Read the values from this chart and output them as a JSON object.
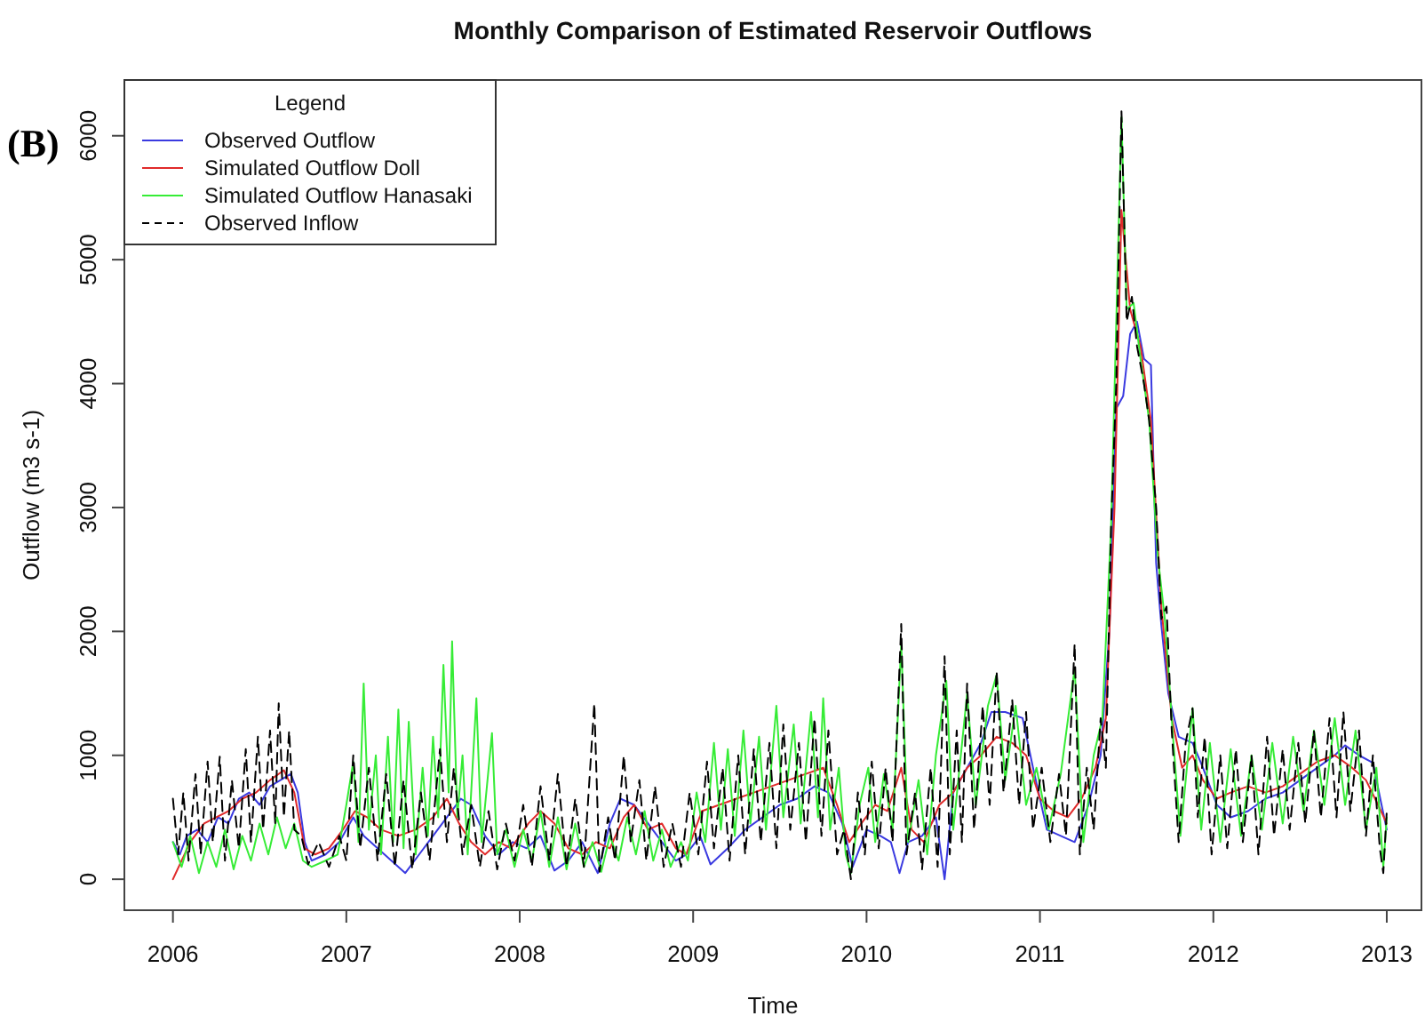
{
  "chart_data": {
    "type": "line",
    "title": "Monthly Comparison of Estimated Reservoir Outflows",
    "xlabel": "Time",
    "ylabel": "Outflow (m3 s-1)",
    "legend_title": "Legend",
    "legend": "top left",
    "annotations": [
      "(B)"
    ],
    "xlim": [
      2005.72,
      2013.2
    ],
    "ylim": [
      -250,
      6450
    ],
    "xticks": [
      2006,
      2007,
      2008,
      2009,
      2010,
      2011,
      2012,
      2013
    ],
    "yticks": [
      0,
      1000,
      2000,
      3000,
      4000,
      5000,
      6000
    ],
    "series": [
      {
        "name": "Observed Outflow",
        "color": "#3a3ae0",
        "x": [
          2006.0,
          2006.04,
          2006.08,
          2006.14,
          2006.2,
          2006.26,
          2006.32,
          2006.38,
          2006.44,
          2006.5,
          2006.56,
          2006.62,
          2006.68,
          2006.72,
          2006.76,
          2006.8,
          2006.88,
          2006.96,
          2007.04,
          2007.1,
          2007.18,
          2007.26,
          2007.34,
          2007.42,
          2007.5,
          2007.58,
          2007.66,
          2007.72,
          2007.8,
          2007.88,
          2007.96,
          2008.04,
          2008.12,
          2008.2,
          2008.28,
          2008.36,
          2008.45,
          2008.52,
          2008.58,
          2008.66,
          2008.74,
          2008.82,
          2008.9,
          2008.96,
          2009.04,
          2009.1,
          2009.2,
          2009.3,
          2009.4,
          2009.5,
          2009.6,
          2009.7,
          2009.78,
          2009.86,
          2009.92,
          2010.0,
          2010.08,
          2010.14,
          2010.19,
          2010.24,
          2010.32,
          2010.4,
          2010.45,
          2010.5,
          2010.58,
          2010.66,
          2010.72,
          2010.8,
          2010.9,
          2010.96,
          2011.04,
          2011.12,
          2011.2,
          2011.28,
          2011.35,
          2011.4,
          2011.44,
          2011.48,
          2011.52,
          2011.56,
          2011.6,
          2011.64,
          2011.67,
          2011.7,
          2011.74,
          2011.8,
          2011.88,
          2011.94,
          2012.02,
          2012.1,
          2012.2,
          2012.3,
          2012.4,
          2012.5,
          2012.6,
          2012.7,
          2012.76,
          2012.84,
          2012.92,
          2012.97,
          2013.0
        ],
        "values": [
          300,
          200,
          350,
          400,
          300,
          500,
          450,
          650,
          700,
          600,
          750,
          800,
          850,
          700,
          300,
          150,
          200,
          300,
          500,
          350,
          250,
          150,
          50,
          200,
          350,
          500,
          650,
          600,
          350,
          200,
          300,
          250,
          350,
          70,
          150,
          300,
          50,
          450,
          650,
          600,
          450,
          300,
          150,
          200,
          350,
          120,
          250,
          400,
          500,
          600,
          650,
          750,
          700,
          450,
          100,
          400,
          350,
          300,
          50,
          300,
          350,
          500,
          0,
          700,
          900,
          1100,
          1350,
          1350,
          1300,
          900,
          400,
          350,
          300,
          600,
          1000,
          2000,
          3800,
          3900,
          4400,
          4500,
          4200,
          4150,
          2550,
          2050,
          1500,
          1150,
          1100,
          900,
          600,
          500,
          550,
          650,
          700,
          800,
          900,
          1000,
          1080,
          1000,
          940,
          600,
          400
        ]
      },
      {
        "name": "Simulated Outflow Doll",
        "color": "#e02a2a",
        "x": [
          2006.0,
          2006.05,
          2006.1,
          2006.18,
          2006.25,
          2006.32,
          2006.4,
          2006.48,
          2006.56,
          2006.64,
          2006.7,
          2006.76,
          2006.82,
          2006.9,
          2006.98,
          2007.05,
          2007.12,
          2007.2,
          2007.3,
          2007.4,
          2007.5,
          2007.58,
          2007.65,
          2007.72,
          2007.8,
          2007.88,
          2007.95,
          2008.05,
          2008.12,
          2008.2,
          2008.28,
          2008.36,
          2008.44,
          2008.52,
          2008.6,
          2008.66,
          2008.74,
          2008.82,
          2008.9,
          2008.96,
          2009.05,
          2009.15,
          2009.25,
          2009.35,
          2009.45,
          2009.55,
          2009.65,
          2009.75,
          2009.83,
          2009.9,
          2009.97,
          2010.05,
          2010.12,
          2010.2,
          2010.26,
          2010.33,
          2010.42,
          2010.5,
          2010.58,
          2010.66,
          2010.75,
          2010.84,
          2010.92,
          2011.0,
          2011.08,
          2011.16,
          2011.24,
          2011.32,
          2011.38,
          2011.43,
          2011.47,
          2011.52,
          2011.58,
          2011.64,
          2011.7,
          2011.76,
          2011.82,
          2011.88,
          2011.94,
          2012.02,
          2012.1,
          2012.2,
          2012.3,
          2012.4,
          2012.5,
          2012.6,
          2012.7,
          2012.8,
          2012.88,
          2012.95,
          2013.0
        ],
        "values": [
          0,
          150,
          300,
          450,
          500,
          550,
          650,
          700,
          800,
          880,
          700,
          250,
          200,
          250,
          400,
          550,
          500,
          400,
          350,
          400,
          500,
          650,
          450,
          300,
          200,
          300,
          250,
          450,
          550,
          450,
          250,
          200,
          300,
          250,
          500,
          600,
          400,
          450,
          250,
          200,
          550,
          600,
          650,
          700,
          750,
          800,
          850,
          900,
          600,
          300,
          450,
          600,
          550,
          900,
          400,
          300,
          600,
          700,
          900,
          1000,
          1150,
          1100,
          1000,
          650,
          550,
          500,
          650,
          900,
          1300,
          3000,
          5400,
          4600,
          4300,
          3700,
          2200,
          1300,
          900,
          1000,
          800,
          650,
          700,
          750,
          700,
          750,
          850,
          950,
          1000,
          900,
          800,
          600,
          450
        ]
      },
      {
        "name": "Simulated Outflow Hanasaki",
        "color": "#36ec36",
        "x": [
          2006.0,
          2006.05,
          2006.1,
          2006.15,
          2006.2,
          2006.25,
          2006.3,
          2006.35,
          2006.4,
          2006.45,
          2006.5,
          2006.55,
          2006.6,
          2006.65,
          2006.7,
          2006.75,
          2006.8,
          2006.88,
          2006.95,
          2007.0,
          2007.04,
          2007.07,
          2007.1,
          2007.13,
          2007.17,
          2007.2,
          2007.24,
          2007.27,
          2007.3,
          2007.33,
          2007.36,
          2007.4,
          2007.44,
          2007.47,
          2007.5,
          2007.53,
          2007.56,
          2007.59,
          2007.61,
          2007.64,
          2007.67,
          2007.7,
          2007.75,
          2007.78,
          2007.84,
          2007.87,
          2007.92,
          2007.97,
          2008.02,
          2008.07,
          2008.12,
          2008.17,
          2008.22,
          2008.27,
          2008.32,
          2008.37,
          2008.42,
          2008.47,
          2008.52,
          2008.57,
          2008.62,
          2008.67,
          2008.72,
          2008.77,
          2008.82,
          2008.87,
          2008.93,
          2008.97,
          2009.02,
          2009.07,
          2009.12,
          2009.16,
          2009.2,
          2009.24,
          2009.29,
          2009.33,
          2009.38,
          2009.42,
          2009.48,
          2009.52,
          2009.58,
          2009.62,
          2009.68,
          2009.72,
          2009.75,
          2009.79,
          2009.84,
          2009.88,
          2009.91,
          2009.96,
          2010.01,
          2010.05,
          2010.1,
          2010.15,
          2010.2,
          2010.24,
          2010.3,
          2010.35,
          2010.4,
          2010.46,
          2010.5,
          2010.58,
          2010.63,
          2010.7,
          2010.75,
          2010.8,
          2010.86,
          2010.92,
          2010.98,
          2011.05,
          2011.12,
          2011.2,
          2011.25,
          2011.31,
          2011.36,
          2011.41,
          2011.47,
          2011.5,
          2011.54,
          2011.58,
          2011.63,
          2011.68,
          2011.72,
          2011.77,
          2011.81,
          2011.88,
          2011.93,
          2011.98,
          2012.04,
          2012.1,
          2012.16,
          2012.22,
          2012.28,
          2012.34,
          2012.4,
          2012.46,
          2012.52,
          2012.58,
          2012.64,
          2012.7,
          2012.76,
          2012.82,
          2012.88,
          2012.94,
          2012.98,
          2013.0
        ],
        "values": [
          300,
          100,
          350,
          50,
          300,
          100,
          400,
          80,
          350,
          150,
          450,
          200,
          500,
          250,
          450,
          150,
          100,
          150,
          200,
          600,
          950,
          300,
          1580,
          400,
          1000,
          200,
          1150,
          300,
          1370,
          250,
          1270,
          200,
          900,
          350,
          1150,
          500,
          1730,
          700,
          1920,
          500,
          1000,
          200,
          1460,
          300,
          1180,
          200,
          400,
          100,
          400,
          150,
          550,
          100,
          500,
          80,
          450,
          100,
          300,
          60,
          350,
          150,
          500,
          200,
          550,
          150,
          400,
          100,
          300,
          150,
          700,
          300,
          1100,
          400,
          1050,
          350,
          1200,
          450,
          1150,
          400,
          1400,
          500,
          1250,
          450,
          1350,
          500,
          1460,
          400,
          900,
          200,
          50,
          600,
          900,
          300,
          850,
          400,
          1900,
          300,
          800,
          200,
          1000,
          1600,
          400,
          1500,
          600,
          1400,
          1650,
          800,
          1400,
          600,
          900,
          400,
          850,
          1700,
          300,
          1000,
          1300,
          2840,
          6150,
          4600,
          4650,
          4200,
          3700,
          2600,
          2100,
          1100,
          350,
          1380,
          400,
          1100,
          300,
          1050,
          350,
          1000,
          400,
          1100,
          450,
          1150,
          550,
          1200,
          600,
          1300,
          600,
          1200,
          400,
          900,
          100,
          500
        ]
      },
      {
        "name": "Observed Inflow",
        "color": "#000000",
        "line_style": "dashed",
        "x": [
          2006.0,
          2006.03,
          2006.06,
          2006.09,
          2006.13,
          2006.16,
          2006.2,
          2006.23,
          2006.27,
          2006.3,
          2006.34,
          2006.38,
          2006.42,
          2006.45,
          2006.49,
          2006.52,
          2006.56,
          2006.59,
          2006.61,
          2006.64,
          2006.67,
          2006.7,
          2006.74,
          2006.78,
          2006.84,
          2006.9,
          2006.96,
          2007.0,
          2007.04,
          2007.08,
          2007.13,
          2007.18,
          2007.23,
          2007.28,
          2007.33,
          2007.38,
          2007.43,
          2007.48,
          2007.54,
          2007.58,
          2007.62,
          2007.67,
          2007.72,
          2007.77,
          2007.82,
          2007.87,
          2007.92,
          2007.97,
          2008.02,
          2008.07,
          2008.12,
          2008.17,
          2008.22,
          2008.27,
          2008.32,
          2008.37,
          2008.43,
          2008.46,
          2008.51,
          2008.55,
          2008.6,
          2008.64,
          2008.69,
          2008.73,
          2008.78,
          2008.83,
          2008.88,
          2008.93,
          2008.98,
          2009.03,
          2009.08,
          2009.12,
          2009.17,
          2009.21,
          2009.26,
          2009.3,
          2009.35,
          2009.39,
          2009.44,
          2009.48,
          2009.52,
          2009.56,
          2009.61,
          2009.65,
          2009.7,
          2009.74,
          2009.78,
          2009.83,
          2009.87,
          2009.91,
          2009.95,
          2009.99,
          2010.03,
          2010.07,
          2010.11,
          2010.15,
          2010.2,
          2010.23,
          2010.28,
          2010.32,
          2010.37,
          2010.41,
          2010.45,
          2010.48,
          2010.52,
          2010.55,
          2010.58,
          2010.62,
          2010.67,
          2010.71,
          2010.75,
          2010.79,
          2010.84,
          2010.88,
          2010.92,
          2010.96,
          2011.01,
          2011.06,
          2011.11,
          2011.15,
          2011.2,
          2011.23,
          2011.27,
          2011.31,
          2011.35,
          2011.38,
          2011.41,
          2011.44,
          2011.47,
          2011.5,
          2011.53,
          2011.56,
          2011.6,
          2011.63,
          2011.67,
          2011.7,
          2011.73,
          2011.76,
          2011.8,
          2011.84,
          2011.88,
          2011.91,
          2011.95,
          2011.99,
          2012.04,
          2012.08,
          2012.13,
          2012.17,
          2012.22,
          2012.26,
          2012.31,
          2012.35,
          2012.4,
          2012.44,
          2012.49,
          2012.53,
          2012.58,
          2012.62,
          2012.67,
          2012.71,
          2012.75,
          2012.79,
          2012.84,
          2012.88,
          2012.92,
          2012.96,
          2012.98,
          2013.0
        ],
        "values": [
          650,
          200,
          700,
          150,
          850,
          200,
          950,
          300,
          990,
          150,
          800,
          250,
          1050,
          300,
          1150,
          400,
          1200,
          450,
          1420,
          500,
          1200,
          400,
          350,
          120,
          300,
          100,
          350,
          150,
          1000,
          250,
          900,
          150,
          850,
          100,
          800,
          80,
          700,
          150,
          1050,
          300,
          900,
          200,
          600,
          100,
          550,
          80,
          450,
          150,
          600,
          100,
          750,
          150,
          850,
          100,
          650,
          100,
          1420,
          60,
          500,
          150,
          1000,
          300,
          800,
          150,
          750,
          100,
          450,
          100,
          700,
          200,
          950,
          250,
          900,
          150,
          1000,
          200,
          1050,
          300,
          1100,
          250,
          1250,
          400,
          1100,
          300,
          1300,
          350,
          1200,
          200,
          400,
          0,
          700,
          200,
          950,
          250,
          900,
          300,
          2060,
          200,
          700,
          80,
          900,
          100,
          1800,
          200,
          1200,
          300,
          1580,
          400,
          1400,
          600,
          1680,
          700,
          1450,
          600,
          1350,
          400,
          900,
          300,
          850,
          350,
          1900,
          200,
          900,
          400,
          1300,
          900,
          2840,
          4000,
          6200,
          4500,
          4700,
          4300,
          4000,
          3700,
          3000,
          2100,
          2200,
          1200,
          300,
          1100,
          1380,
          500,
          1150,
          200,
          1000,
          250,
          1050,
          300,
          1000,
          200,
          1150,
          350,
          1050,
          400,
          1100,
          450,
          1200,
          500,
          1300,
          500,
          1350,
          550,
          1200,
          350,
          1000,
          250,
          50,
          550
        ]
      }
    ]
  }
}
